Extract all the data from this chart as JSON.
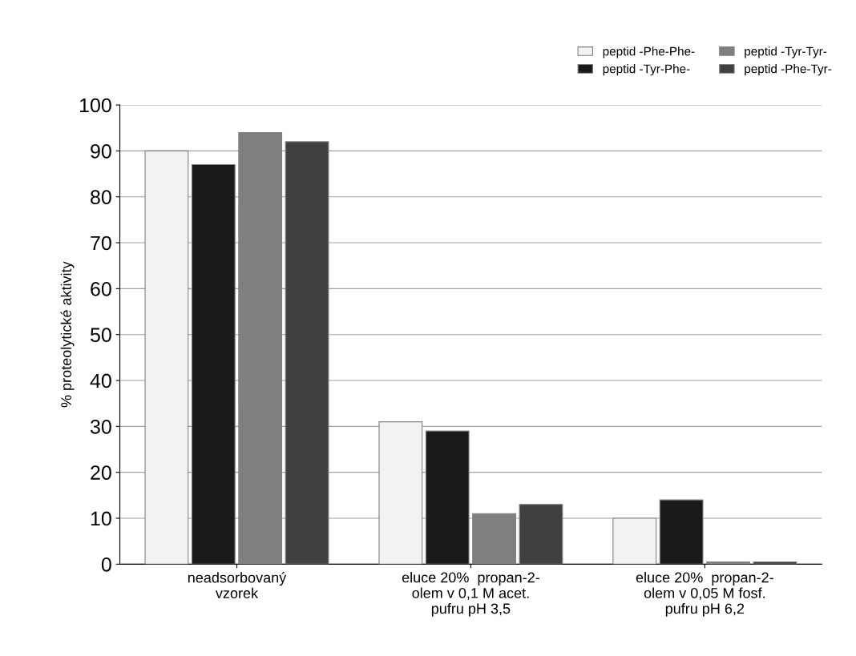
{
  "chart_data": {
    "type": "bar",
    "ylabel": "% proteolytické aktivity",
    "categories": [
      "neadsorbovaný\nvzorek",
      "eluce 20%  propan-2-\nolem v 0,1 M acet.\npufru pH 3,5",
      "eluce 20%  propan-2-\nolem v 0,05 M fosf.\npufru pH 6,2"
    ],
    "series": [
      {
        "name": "peptid -Phe-Phe-",
        "color": "#f2f2f2",
        "values": [
          90,
          31,
          10
        ]
      },
      {
        "name": "peptid -Tyr-Phe-",
        "color": "#1a1a1a",
        "values": [
          87,
          29,
          14
        ]
      },
      {
        "name": "peptid -Tyr-Tyr-",
        "color": "#7f7f7f",
        "values": [
          94,
          11,
          0.5
        ]
      },
      {
        "name": "peptid -Phe-Tyr-",
        "color": "#404040",
        "values": [
          92,
          13,
          0.5
        ]
      }
    ],
    "ylim": [
      0,
      100
    ],
    "yticks": [
      0,
      10,
      20,
      30,
      40,
      50,
      60,
      70,
      80,
      90,
      100
    ],
    "grid": "y",
    "legend": "top right"
  }
}
